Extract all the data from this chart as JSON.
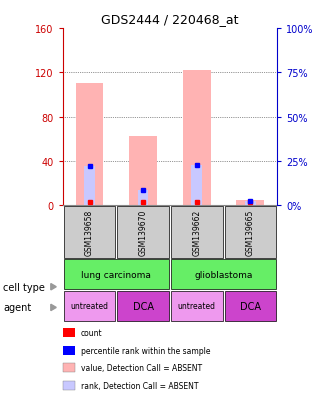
{
  "title": "GDS2444 / 220468_at",
  "samples": [
    "GSM139658",
    "GSM139670",
    "GSM139662",
    "GSM139665"
  ],
  "ylim_left": [
    0,
    160
  ],
  "ylim_right": [
    0,
    100
  ],
  "yticks_left": [
    0,
    40,
    80,
    120,
    160
  ],
  "yticks_right": [
    0,
    25,
    50,
    75,
    100
  ],
  "ytick_labels_right": [
    "0%",
    "25%",
    "50%",
    "75%",
    "100%"
  ],
  "bar_value_color": "#ffb3b3",
  "bar_rank_color": "#c8c8ff",
  "dot_value_color": "#ff0000",
  "dot_rank_color": "#0000ff",
  "bar_values": [
    110,
    62,
    122,
    5
  ],
  "bar_ranks": [
    35,
    14,
    36,
    4
  ],
  "dot_values": [
    3,
    3,
    3,
    3
  ],
  "dot_ranks": [
    35,
    14,
    36,
    4
  ],
  "legend_items": [
    {
      "label": "count",
      "color": "#ff0000"
    },
    {
      "label": "percentile rank within the sample",
      "color": "#0000ff"
    },
    {
      "label": "value, Detection Call = ABSENT",
      "color": "#ffb3b3"
    },
    {
      "label": "rank, Detection Call = ABSENT",
      "color": "#c8c8ff"
    }
  ],
  "sample_box_color": "#cccccc",
  "cell_type_label": "cell type",
  "agent_label": "agent",
  "left_axis_color": "#cc0000",
  "right_axis_color": "#0000cc",
  "grid_color": "#333333",
  "background_color": "#ffffff",
  "arrow_color": "#888888",
  "cell_type_color": "#66ee66",
  "agent_colors": [
    "#ee99ee",
    "#cc44cc",
    "#ee99ee",
    "#cc44cc"
  ],
  "agent_labels": [
    "untreated",
    "DCA",
    "untreated",
    "DCA"
  ],
  "cell_type_labels": [
    "lung carcinoma",
    "glioblastoma"
  ]
}
